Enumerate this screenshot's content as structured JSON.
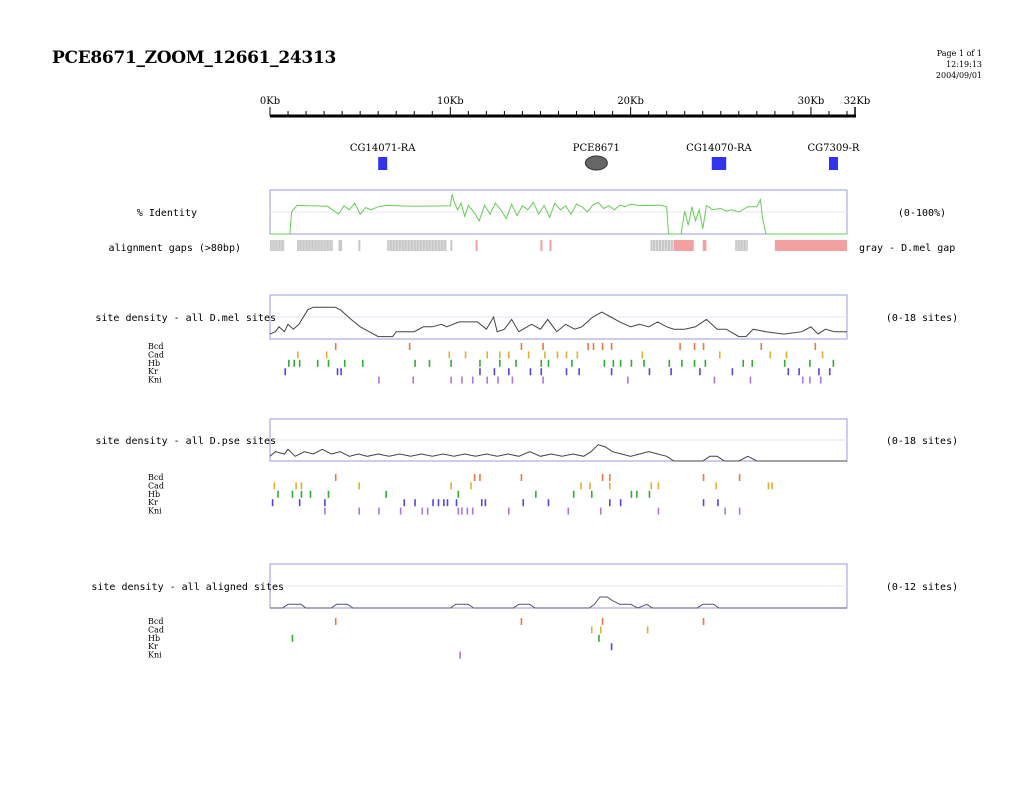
{
  "header": {
    "title": "PCE8671_ZOOM_12661_24313",
    "page": "Page 1 of 1",
    "time": "12:19:13",
    "date": "2004/09/01"
  },
  "colors": {
    "identity_line": "#66cc55",
    "density_line": "#444444",
    "aligned_density_line": "#555577",
    "panel_border": "#9999dd",
    "gene_box": "#3333ee",
    "gap_gray": "#c8c8c8",
    "gap_pink": "#f2a0a0",
    "Bcd": "#ee7744",
    "Cad": "#e0b030",
    "Hb": "#33aa33",
    "Kr": "#5544dd",
    "Kni": "#aa77dd"
  },
  "chart_data": {
    "type": "line",
    "axis": {
      "range_kb": [
        0,
        32
      ],
      "ticks": [
        {
          "label": "0Kb",
          "kb": 0
        },
        {
          "label": "10Kb",
          "kb": 10
        },
        {
          "label": "20Kb",
          "kb": 20
        },
        {
          "label": "30Kb",
          "kb": 30
        },
        {
          "label": "32Kb",
          "kb": 32
        }
      ]
    },
    "genes": [
      {
        "label": "CG14071-RA",
        "boxes": [
          [
            6.0,
            6.5
          ]
        ]
      },
      {
        "label": "PCE8671",
        "oval": 18.1
      },
      {
        "label": "CG14070-RA",
        "boxes": [
          [
            24.5,
            25.3
          ]
        ]
      },
      {
        "label": "CG7309-R",
        "boxes": [
          [
            31.0,
            31.5
          ]
        ]
      }
    ],
    "identity": {
      "label": "% Identity",
      "range_label": "(0-100%)",
      "x": [
        0,
        1.1,
        1.2,
        1.5,
        3.2,
        3.8,
        4.1,
        4.4,
        4.7,
        5.0,
        5.3,
        5.6,
        6.0,
        6.5,
        7.0,
        8.0,
        10.0,
        10.1,
        10.2,
        10.4,
        10.6,
        10.8,
        11.0,
        11.3,
        11.6,
        11.9,
        12.2,
        12.5,
        12.8,
        13.1,
        13.4,
        13.7,
        14.0,
        14.3,
        14.6,
        14.9,
        15.2,
        15.5,
        15.8,
        16.1,
        16.4,
        16.7,
        17.0,
        17.3,
        17.6,
        17.9,
        18.2,
        18.5,
        18.8,
        19.1,
        19.4,
        19.7,
        20.0,
        20.3,
        20.6,
        20.9,
        21.2,
        21.5,
        21.8,
        22.0,
        22.1,
        22.8,
        23.0,
        23.2,
        23.4,
        23.6,
        23.8,
        24.0,
        24.2,
        24.4,
        24.5,
        25.0,
        25.3,
        25.6,
        26.0,
        26.5,
        27.0,
        27.2,
        27.3,
        27.5,
        28.0,
        32.0
      ],
      "y": [
        0,
        0,
        50,
        65,
        63,
        45,
        64,
        55,
        70,
        45,
        60,
        55,
        62,
        65,
        64,
        63,
        64,
        90,
        75,
        55,
        70,
        40,
        65,
        50,
        30,
        65,
        45,
        70,
        55,
        35,
        68,
        42,
        64,
        55,
        72,
        45,
        65,
        38,
        70,
        55,
        64,
        45,
        68,
        62,
        50,
        66,
        72,
        58,
        64,
        55,
        66,
        62,
        68,
        66,
        64,
        65,
        64,
        66,
        64,
        62,
        0,
        0,
        52,
        20,
        62,
        30,
        55,
        12,
        64,
        60,
        55,
        58,
        52,
        55,
        50,
        62,
        62,
        78,
        40,
        0,
        0,
        0
      ]
    },
    "gaps": {
      "label": "alignment gaps (>80bp)",
      "legend": "gray - D.mel gap",
      "gray": [
        [
          0,
          0.8
        ],
        [
          1.5,
          3.5
        ],
        [
          3.8,
          4.0
        ],
        [
          4.9,
          5.0
        ],
        [
          6.5,
          9.8
        ],
        [
          10.0,
          10.1
        ],
        [
          21.1,
          22.4
        ],
        [
          25.8,
          26.5
        ]
      ],
      "pink": [
        [
          11.4,
          11.5
        ],
        [
          15.0,
          15.1
        ],
        [
          15.5,
          15.6
        ],
        [
          22.4,
          23.5
        ],
        [
          24.0,
          24.2
        ],
        [
          28.0,
          32.0
        ]
      ]
    },
    "tracks": [
      {
        "label": "site density - all D.mel sites",
        "range_label": "(0-18 sites)",
        "max": 18,
        "x": [
          0,
          0.3,
          0.5,
          0.8,
          1.0,
          1.3,
          1.6,
          2.1,
          2.4,
          3.6,
          3.9,
          4.5,
          5.0,
          5.5,
          6.0,
          6.8,
          7.0,
          8.0,
          8.5,
          9.0,
          9.5,
          9.8,
          10.5,
          11.5,
          12.0,
          12.4,
          12.6,
          13.0,
          13.4,
          13.8,
          14.5,
          15.0,
          15.4,
          15.9,
          16.4,
          16.9,
          17.3,
          17.9,
          18.4,
          18.9,
          19.4,
          20.0,
          20.5,
          21.0,
          21.5,
          22.0,
          22.4,
          23.0,
          23.6,
          24.2,
          24.8,
          25.3,
          26.0,
          26.4,
          26.8,
          27.5,
          28.5,
          29.5,
          30.0,
          30.4,
          30.8,
          31.3,
          32.0
        ],
        "y": [
          2,
          3,
          5,
          3,
          6,
          4,
          6,
          12,
          13,
          13,
          12,
          8,
          5,
          3,
          1,
          1,
          3,
          3,
          5,
          5,
          6,
          5,
          7,
          7,
          4,
          9,
          3,
          4,
          8,
          3,
          6,
          4,
          8,
          3,
          6,
          4,
          5,
          9,
          11,
          9,
          7,
          5,
          6,
          5,
          7,
          5,
          4,
          4,
          5,
          8,
          4,
          4,
          1,
          1,
          4,
          3,
          2,
          3,
          5,
          2,
          4,
          3,
          3
        ]
      },
      {
        "label": "site density - all D.pse sites",
        "range_label": "(0-18 sites)",
        "max": 18,
        "x": [
          0,
          0.3,
          0.8,
          1.0,
          1.4,
          1.9,
          2.4,
          2.9,
          3.4,
          3.9,
          4.4,
          4.9,
          5.4,
          6.0,
          6.6,
          7.2,
          7.8,
          8.4,
          9.0,
          9.6,
          10.2,
          10.8,
          11.4,
          12.0,
          12.6,
          13.2,
          13.8,
          14.4,
          15.0,
          15.6,
          16.2,
          16.8,
          17.4,
          17.8,
          18.2,
          18.6,
          19.0,
          19.5,
          20.0,
          20.5,
          21.0,
          21.5,
          22.0,
          22.4,
          24.0,
          24.4,
          24.8,
          25.2,
          26.0,
          26.5,
          27.0,
          32.0
        ],
        "y": [
          2,
          4,
          3,
          5,
          2,
          4,
          3,
          5,
          3,
          4,
          2,
          3,
          2,
          3,
          2,
          3,
          2,
          3,
          2,
          3,
          2,
          3,
          2,
          3,
          2,
          3,
          2,
          4,
          2,
          3,
          2,
          3,
          2,
          4,
          7,
          6,
          4,
          3,
          2,
          3,
          4,
          3,
          2,
          0,
          0,
          2,
          2,
          0,
          0,
          2,
          0,
          0
        ]
      },
      {
        "label": "site density - all aligned sites",
        "range_label": "(0-12 sites)",
        "max": 12,
        "x": [
          0,
          0.7,
          1.0,
          1.7,
          2.0,
          3.4,
          3.7,
          4.3,
          4.6,
          10.0,
          10.3,
          11.0,
          11.3,
          13.5,
          13.8,
          14.4,
          14.7,
          17.7,
          18.0,
          18.3,
          18.7,
          19.0,
          19.4,
          20.0,
          20.4,
          20.9,
          21.2,
          23.7,
          24.0,
          24.6,
          24.9,
          29.5,
          32.0
        ],
        "y": [
          0,
          0,
          1,
          1,
          0,
          0,
          1,
          1,
          0,
          0,
          1,
          1,
          0,
          0,
          1,
          1,
          0,
          0,
          1,
          3,
          3,
          2,
          1,
          1,
          0,
          1,
          0,
          0,
          1,
          1,
          0,
          0,
          0
        ]
      }
    ],
    "site_rows": [
      {
        "Bcd": [
          3.6,
          7.7,
          13.9,
          15.1,
          17.6,
          17.9,
          18.4,
          18.9,
          22.7,
          23.5,
          24.0,
          27.2,
          30.2
        ],
        "Cad": [
          1.5,
          3.1,
          9.9,
          10.8,
          12.0,
          12.7,
          13.2,
          14.3,
          15.2,
          15.9,
          16.4,
          17.0,
          20.6,
          24.9,
          27.7,
          28.6,
          30.6
        ],
        "Hb": [
          1.0,
          1.3,
          1.6,
          2.6,
          3.2,
          4.1,
          5.1,
          8.0,
          8.8,
          10.0,
          11.6,
          12.7,
          13.6,
          15.0,
          15.4,
          16.7,
          18.5,
          19.0,
          19.4,
          20.0,
          20.7,
          22.1,
          22.8,
          23.5,
          24.1,
          26.2,
          26.7,
          28.5,
          29.9,
          31.2
        ],
        "Kr": [
          0.8,
          3.7,
          3.9,
          11.6,
          12.4,
          13.2,
          14.4,
          15.0,
          16.4,
          17.1,
          18.9,
          21.0,
          22.2,
          23.8,
          25.6,
          28.7,
          29.3,
          30.4,
          31.0
        ],
        "Kni": [
          6.0,
          7.9,
          10.0,
          10.6,
          11.2,
          12.0,
          12.6,
          13.4,
          15.1,
          19.8,
          24.6,
          26.6,
          29.5,
          29.9,
          30.5
        ]
      },
      {
        "Bcd": [
          3.6,
          11.3,
          11.6,
          13.9,
          18.4,
          18.8,
          24.0,
          26.0
        ],
        "Cad": [
          0.2,
          1.4,
          1.7,
          4.9,
          10.0,
          11.1,
          17.2,
          17.7,
          18.8,
          21.1,
          21.5,
          24.7,
          27.6,
          27.8
        ],
        "Hb": [
          0.4,
          1.2,
          1.7,
          2.2,
          3.2,
          6.4,
          10.4,
          14.7,
          16.8,
          17.8,
          20.0,
          20.3,
          21.0
        ],
        "Kr": [
          0.1,
          1.6,
          3.0,
          7.4,
          8.0,
          9.0,
          9.3,
          9.6,
          9.8,
          10.3,
          11.7,
          11.9,
          14.0,
          15.4,
          18.8,
          19.4,
          24.0,
          24.8
        ],
        "Kni": [
          3.0,
          4.9,
          6.0,
          7.2,
          8.4,
          8.7,
          10.4,
          10.6,
          10.9,
          11.2,
          13.2,
          16.5,
          18.3,
          21.5,
          25.2,
          26.0
        ]
      },
      {
        "Bcd": [
          3.6,
          13.9,
          18.4,
          24.0
        ],
        "Cad": [
          17.8,
          18.3,
          20.9
        ],
        "Hb": [
          1.2,
          18.2
        ],
        "Kr": [
          18.9
        ],
        "Kni": [
          10.5
        ]
      }
    ],
    "site_labels": [
      "Bcd",
      "Cad",
      "Hb",
      "Kr",
      "Kni"
    ]
  }
}
